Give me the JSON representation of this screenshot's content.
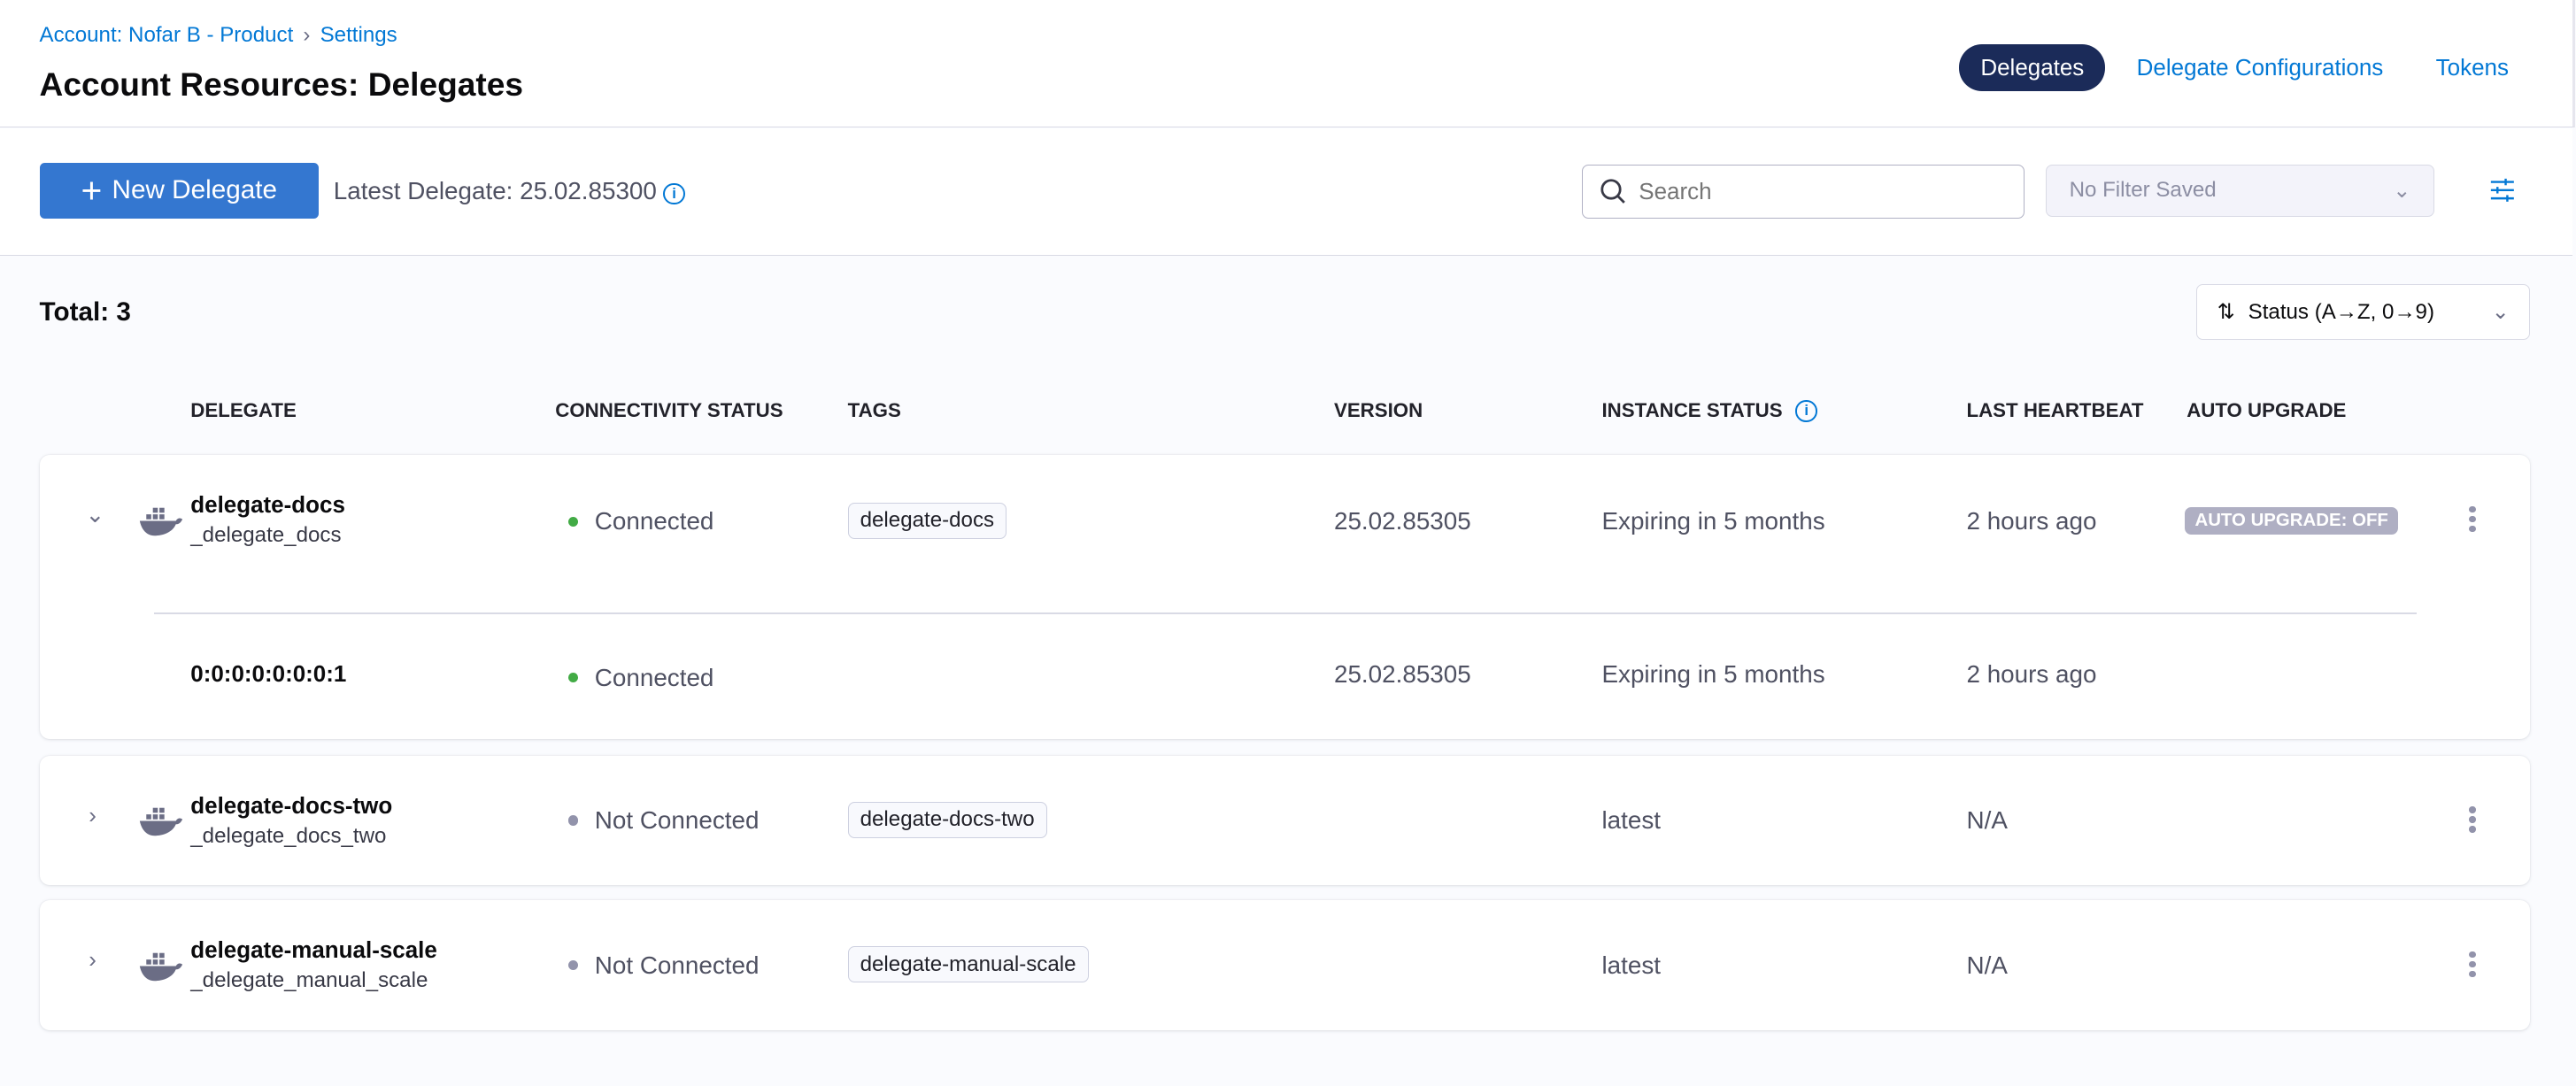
{
  "breadcrumb": [
    "Account: Nofar B - Product",
    "Settings"
  ],
  "title": "Account Resources: Delegates",
  "tabs": [
    "Delegates",
    "Delegate Configurations",
    "Tokens"
  ],
  "toolbar": {
    "new_label": "New Delegate",
    "latest": "Latest Delegate: 25.02.85300",
    "search_placeholder": "Search",
    "filter": "No Filter Saved"
  },
  "total": "Total: 3",
  "sort": "Status (A→Z, 0→9)",
  "columns": [
    "DELEGATE",
    "CONNECTIVITY STATUS",
    "TAGS",
    "VERSION",
    "INSTANCE STATUS",
    "LAST HEARTBEAT",
    "AUTO UPGRADE"
  ],
  "colors": {
    "connected": "#42ab45",
    "disconnected": "#9293ab",
    "accent": "#0278d5"
  },
  "rows": [
    {
      "name": "delegate-docs",
      "sub": "_delegate_docs",
      "status": "Connected",
      "tag": "delegate-docs",
      "version": "25.02.85305",
      "instance": "Expiring in 5 months",
      "heartbeat": "2 hours ago",
      "auto": "AUTO UPGRADE: OFF",
      "instance_row": {
        "name": "0:0:0:0:0:0:0:1",
        "status": "Connected",
        "version": "25.02.85305",
        "instance": "Expiring in 5 months",
        "heartbeat": "2 hours ago"
      }
    },
    {
      "name": "delegate-docs-two",
      "sub": "_delegate_docs_two",
      "status": "Not Connected",
      "tag": "delegate-docs-two",
      "instance": "latest",
      "heartbeat": "N/A"
    },
    {
      "name": "delegate-manual-scale",
      "sub": "_delegate_manual_scale",
      "status": "Not Connected",
      "tag": "delegate-manual-scale",
      "instance": "latest",
      "heartbeat": "N/A"
    }
  ]
}
